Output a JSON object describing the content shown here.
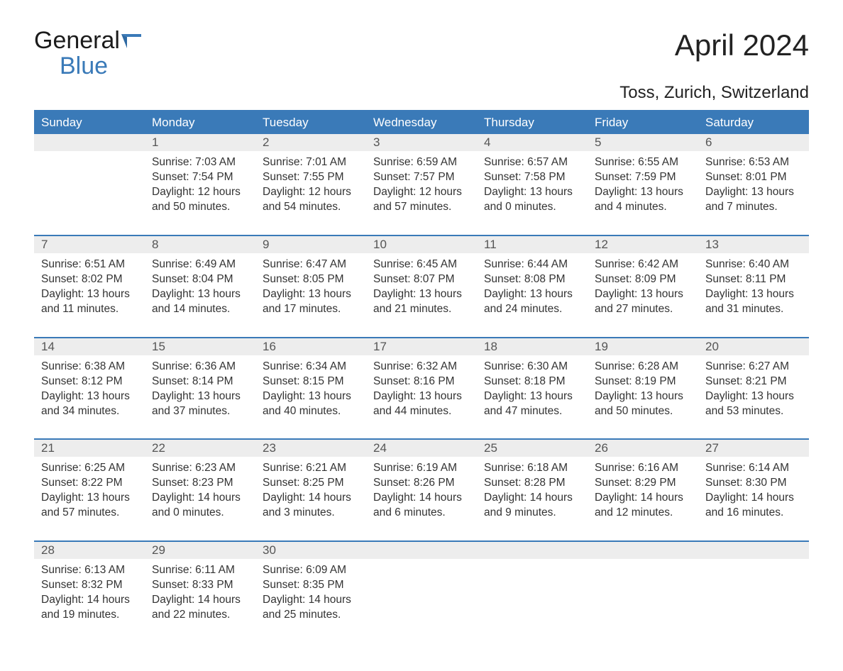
{
  "logo": {
    "line1": "General",
    "line2": "Blue"
  },
  "title": "April 2024",
  "location": "Toss, Zurich, Switzerland",
  "colors": {
    "header_bg": "#3a7ab8",
    "header_text": "#ffffff",
    "daynum_bg": "#ededed",
    "border": "#3a7ab8",
    "body_text": "#333333",
    "page_bg": "#ffffff"
  },
  "typography": {
    "title_fontsize": 42,
    "location_fontsize": 24,
    "dayheader_fontsize": 17,
    "daynum_fontsize": 17,
    "cell_fontsize": 15.5,
    "logo_fontsize": 34
  },
  "day_headers": [
    "Sunday",
    "Monday",
    "Tuesday",
    "Wednesday",
    "Thursday",
    "Friday",
    "Saturday"
  ],
  "weeks": [
    [
      {
        "num": "",
        "sunrise": "",
        "sunset": "",
        "daylight": ""
      },
      {
        "num": "1",
        "sunrise": "Sunrise: 7:03 AM",
        "sunset": "Sunset: 7:54 PM",
        "daylight": "Daylight: 12 hours and 50 minutes."
      },
      {
        "num": "2",
        "sunrise": "Sunrise: 7:01 AM",
        "sunset": "Sunset: 7:55 PM",
        "daylight": "Daylight: 12 hours and 54 minutes."
      },
      {
        "num": "3",
        "sunrise": "Sunrise: 6:59 AM",
        "sunset": "Sunset: 7:57 PM",
        "daylight": "Daylight: 12 hours and 57 minutes."
      },
      {
        "num": "4",
        "sunrise": "Sunrise: 6:57 AM",
        "sunset": "Sunset: 7:58 PM",
        "daylight": "Daylight: 13 hours and 0 minutes."
      },
      {
        "num": "5",
        "sunrise": "Sunrise: 6:55 AM",
        "sunset": "Sunset: 7:59 PM",
        "daylight": "Daylight: 13 hours and 4 minutes."
      },
      {
        "num": "6",
        "sunrise": "Sunrise: 6:53 AM",
        "sunset": "Sunset: 8:01 PM",
        "daylight": "Daylight: 13 hours and 7 minutes."
      }
    ],
    [
      {
        "num": "7",
        "sunrise": "Sunrise: 6:51 AM",
        "sunset": "Sunset: 8:02 PM",
        "daylight": "Daylight: 13 hours and 11 minutes."
      },
      {
        "num": "8",
        "sunrise": "Sunrise: 6:49 AM",
        "sunset": "Sunset: 8:04 PM",
        "daylight": "Daylight: 13 hours and 14 minutes."
      },
      {
        "num": "9",
        "sunrise": "Sunrise: 6:47 AM",
        "sunset": "Sunset: 8:05 PM",
        "daylight": "Daylight: 13 hours and 17 minutes."
      },
      {
        "num": "10",
        "sunrise": "Sunrise: 6:45 AM",
        "sunset": "Sunset: 8:07 PM",
        "daylight": "Daylight: 13 hours and 21 minutes."
      },
      {
        "num": "11",
        "sunrise": "Sunrise: 6:44 AM",
        "sunset": "Sunset: 8:08 PM",
        "daylight": "Daylight: 13 hours and 24 minutes."
      },
      {
        "num": "12",
        "sunrise": "Sunrise: 6:42 AM",
        "sunset": "Sunset: 8:09 PM",
        "daylight": "Daylight: 13 hours and 27 minutes."
      },
      {
        "num": "13",
        "sunrise": "Sunrise: 6:40 AM",
        "sunset": "Sunset: 8:11 PM",
        "daylight": "Daylight: 13 hours and 31 minutes."
      }
    ],
    [
      {
        "num": "14",
        "sunrise": "Sunrise: 6:38 AM",
        "sunset": "Sunset: 8:12 PM",
        "daylight": "Daylight: 13 hours and 34 minutes."
      },
      {
        "num": "15",
        "sunrise": "Sunrise: 6:36 AM",
        "sunset": "Sunset: 8:14 PM",
        "daylight": "Daylight: 13 hours and 37 minutes."
      },
      {
        "num": "16",
        "sunrise": "Sunrise: 6:34 AM",
        "sunset": "Sunset: 8:15 PM",
        "daylight": "Daylight: 13 hours and 40 minutes."
      },
      {
        "num": "17",
        "sunrise": "Sunrise: 6:32 AM",
        "sunset": "Sunset: 8:16 PM",
        "daylight": "Daylight: 13 hours and 44 minutes."
      },
      {
        "num": "18",
        "sunrise": "Sunrise: 6:30 AM",
        "sunset": "Sunset: 8:18 PM",
        "daylight": "Daylight: 13 hours and 47 minutes."
      },
      {
        "num": "19",
        "sunrise": "Sunrise: 6:28 AM",
        "sunset": "Sunset: 8:19 PM",
        "daylight": "Daylight: 13 hours and 50 minutes."
      },
      {
        "num": "20",
        "sunrise": "Sunrise: 6:27 AM",
        "sunset": "Sunset: 8:21 PM",
        "daylight": "Daylight: 13 hours and 53 minutes."
      }
    ],
    [
      {
        "num": "21",
        "sunrise": "Sunrise: 6:25 AM",
        "sunset": "Sunset: 8:22 PM",
        "daylight": "Daylight: 13 hours and 57 minutes."
      },
      {
        "num": "22",
        "sunrise": "Sunrise: 6:23 AM",
        "sunset": "Sunset: 8:23 PM",
        "daylight": "Daylight: 14 hours and 0 minutes."
      },
      {
        "num": "23",
        "sunrise": "Sunrise: 6:21 AM",
        "sunset": "Sunset: 8:25 PM",
        "daylight": "Daylight: 14 hours and 3 minutes."
      },
      {
        "num": "24",
        "sunrise": "Sunrise: 6:19 AM",
        "sunset": "Sunset: 8:26 PM",
        "daylight": "Daylight: 14 hours and 6 minutes."
      },
      {
        "num": "25",
        "sunrise": "Sunrise: 6:18 AM",
        "sunset": "Sunset: 8:28 PM",
        "daylight": "Daylight: 14 hours and 9 minutes."
      },
      {
        "num": "26",
        "sunrise": "Sunrise: 6:16 AM",
        "sunset": "Sunset: 8:29 PM",
        "daylight": "Daylight: 14 hours and 12 minutes."
      },
      {
        "num": "27",
        "sunrise": "Sunrise: 6:14 AM",
        "sunset": "Sunset: 8:30 PM",
        "daylight": "Daylight: 14 hours and 16 minutes."
      }
    ],
    [
      {
        "num": "28",
        "sunrise": "Sunrise: 6:13 AM",
        "sunset": "Sunset: 8:32 PM",
        "daylight": "Daylight: 14 hours and 19 minutes."
      },
      {
        "num": "29",
        "sunrise": "Sunrise: 6:11 AM",
        "sunset": "Sunset: 8:33 PM",
        "daylight": "Daylight: 14 hours and 22 minutes."
      },
      {
        "num": "30",
        "sunrise": "Sunrise: 6:09 AM",
        "sunset": "Sunset: 8:35 PM",
        "daylight": "Daylight: 14 hours and 25 minutes."
      },
      {
        "num": "",
        "sunrise": "",
        "sunset": "",
        "daylight": ""
      },
      {
        "num": "",
        "sunrise": "",
        "sunset": "",
        "daylight": ""
      },
      {
        "num": "",
        "sunrise": "",
        "sunset": "",
        "daylight": ""
      },
      {
        "num": "",
        "sunrise": "",
        "sunset": "",
        "daylight": ""
      }
    ]
  ]
}
